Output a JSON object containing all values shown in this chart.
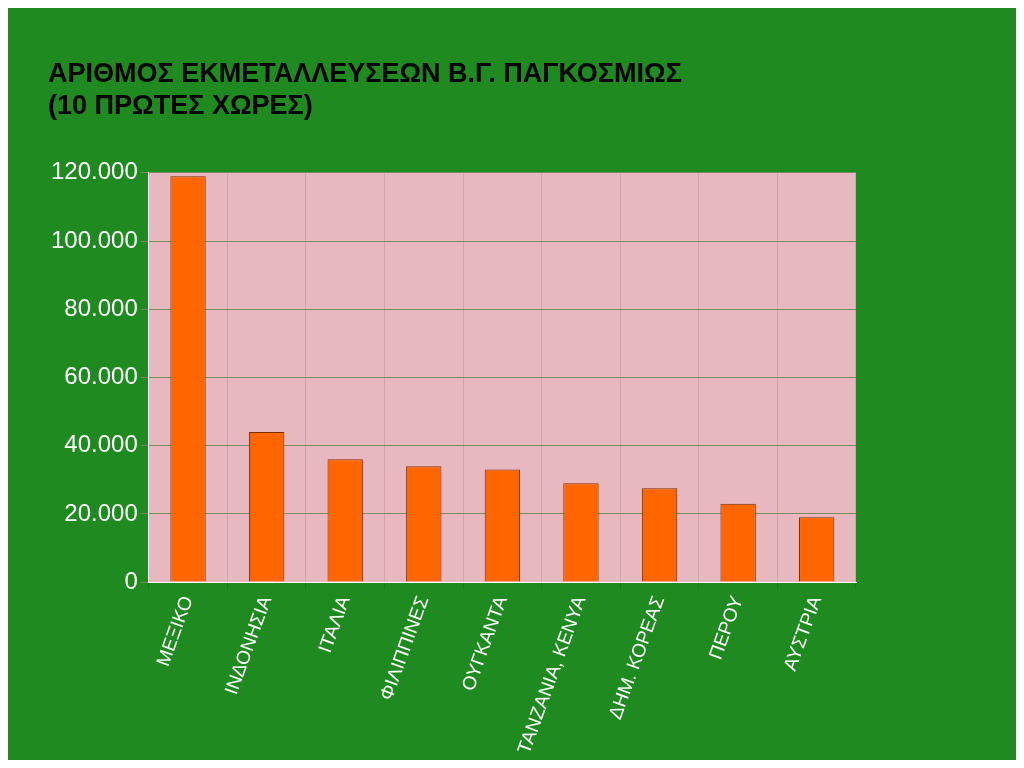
{
  "chart_data": {
    "type": "bar",
    "title": "ΑΡΙΘΜΟΣ ΕΚΜΕΤΑΛΛΕΥΣΕΩΝ Β.Γ. ΠΑΓΚΟΣΜΙΩΣ\n(10 ΠΡΩΤΕΣ ΧΩΡΕΣ)",
    "categories": [
      "ΜΕΞΙΚΟ",
      "ΙΝΔΟΝΗΣΙΑ",
      "ΙΤΑΛΙΑ",
      "ΦΙΛΙΠΠΙΝΕΣ",
      "ΟΥΓΚΑΝΤΑ",
      "ΤΑΝΖΑΝΙΑ, ΚΕΝΥΑ",
      "ΔΗΜ. ΚΟΡΕΑΣ",
      "ΠΕΡΟΥ",
      "ΑΥΣΤΡΙΑ"
    ],
    "values": [
      119000,
      44000,
      36000,
      34000,
      33000,
      29000,
      27500,
      23000,
      19000
    ],
    "color": "#ff6600",
    "ylim": [
      0,
      120000
    ],
    "yticks": [
      {
        "value": 0,
        "label": "0"
      },
      {
        "value": 20000,
        "label": "20.000"
      },
      {
        "value": 40000,
        "label": "40.000"
      },
      {
        "value": 60000,
        "label": "60.000"
      },
      {
        "value": 80000,
        "label": "80.000"
      },
      {
        "value": 100000,
        "label": "100.000"
      },
      {
        "value": 120000,
        "label": "120.000"
      }
    ],
    "grid": true
  }
}
